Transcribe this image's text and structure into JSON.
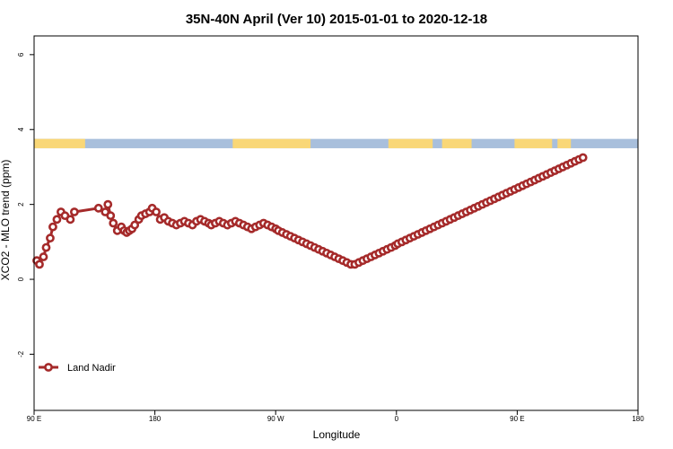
{
  "chart_data": {
    "type": "line",
    "title": "35N-40N April (Ver 10)   2015-01-01 to 2020-12-18",
    "xlabel": "Longitude",
    "ylabel": "XCO2 - MLO trend (ppm)",
    "xlim": [
      90,
      540
    ],
    "ylim": [
      -3.5,
      6.5
    ],
    "x_ticks": [
      {
        "value": 90,
        "label": "90 E"
      },
      {
        "value": 180,
        "label": "180"
      },
      {
        "value": 270,
        "label": "90 W"
      },
      {
        "value": 360,
        "label": "0"
      },
      {
        "value": 450,
        "label": "90 E"
      },
      {
        "value": 540,
        "label": "180"
      }
    ],
    "y_ticks": [
      {
        "value": -2,
        "label": "-2"
      },
      {
        "value": 0,
        "label": "0"
      },
      {
        "value": 2,
        "label": "2"
      },
      {
        "value": 4,
        "label": "4"
      },
      {
        "value": 6,
        "label": "6"
      }
    ],
    "land_sea_strip": {
      "y_range": [
        3.5,
        3.75
      ],
      "ocean_color": "#a8bfdc",
      "land_color": "#f9d777",
      "land_spans": [
        [
          90,
          128
        ],
        [
          238,
          296
        ],
        [
          354,
          387
        ],
        [
          394,
          416
        ],
        [
          448,
          476
        ],
        [
          480,
          490
        ]
      ]
    },
    "legend": {
      "position": "bottom-left"
    },
    "series": [
      {
        "name": "Land Nadir",
        "color": "#a52a2a",
        "x": [
          92,
          94,
          97,
          99,
          102,
          104,
          107,
          110,
          113,
          117,
          120,
          138,
          143,
          145,
          147,
          149,
          152,
          155,
          157,
          159,
          161,
          163,
          165,
          168,
          170,
          173,
          176,
          178,
          181,
          184,
          187,
          190,
          193,
          196,
          199,
          202,
          205,
          208,
          211,
          214,
          217,
          220,
          222,
          225,
          228,
          231,
          234,
          237,
          240,
          243,
          246,
          249,
          252,
          255,
          258,
          261,
          264,
          267,
          270,
          272,
          275,
          278,
          281,
          284,
          287,
          290,
          293,
          296,
          299,
          302,
          305,
          308,
          311,
          314,
          317,
          320,
          323,
          326,
          329,
          332,
          335,
          338,
          341,
          344,
          347,
          350,
          353,
          356,
          359,
          361,
          364,
          367,
          370,
          373,
          376,
          379,
          382,
          385,
          388,
          391,
          394,
          397,
          400,
          403,
          406,
          409,
          412,
          415,
          418,
          421,
          424,
          427,
          430,
          433,
          436,
          439,
          442,
          445,
          448,
          451,
          454,
          457,
          460,
          463,
          466,
          469,
          472,
          475,
          478,
          481,
          484,
          487,
          490,
          493,
          496,
          499
        ],
        "y": [
          0.5,
          0.4,
          0.6,
          0.85,
          1.1,
          1.4,
          1.6,
          1.8,
          1.7,
          1.6,
          1.8,
          1.9,
          1.8,
          2.0,
          1.7,
          1.5,
          1.3,
          1.4,
          1.3,
          1.25,
          1.3,
          1.35,
          1.45,
          1.6,
          1.7,
          1.75,
          1.8,
          1.9,
          1.8,
          1.6,
          1.65,
          1.55,
          1.5,
          1.45,
          1.5,
          1.55,
          1.5,
          1.45,
          1.55,
          1.6,
          1.55,
          1.5,
          1.45,
          1.5,
          1.55,
          1.5,
          1.45,
          1.5,
          1.55,
          1.5,
          1.45,
          1.4,
          1.35,
          1.4,
          1.45,
          1.5,
          1.45,
          1.4,
          1.35,
          1.3,
          1.25,
          1.2,
          1.15,
          1.1,
          1.05,
          1.0,
          0.95,
          0.9,
          0.85,
          0.8,
          0.75,
          0.7,
          0.65,
          0.6,
          0.55,
          0.5,
          0.45,
          0.4,
          0.4,
          0.45,
          0.5,
          0.55,
          0.6,
          0.65,
          0.7,
          0.75,
          0.8,
          0.85,
          0.9,
          0.95,
          1.0,
          1.05,
          1.1,
          1.15,
          1.2,
          1.25,
          1.3,
          1.35,
          1.4,
          1.45,
          1.5,
          1.55,
          1.6,
          1.65,
          1.7,
          1.75,
          1.8,
          1.85,
          1.9,
          1.95,
          2.0,
          2.05,
          2.1,
          2.15,
          2.2,
          2.25,
          2.3,
          2.35,
          2.4,
          2.45,
          2.5,
          2.55,
          2.6,
          2.65,
          2.7,
          2.75,
          2.8,
          2.85,
          2.9,
          2.95,
          3.0,
          3.05,
          3.1,
          3.15,
          3.2,
          3.25
        ]
      }
    ]
  }
}
